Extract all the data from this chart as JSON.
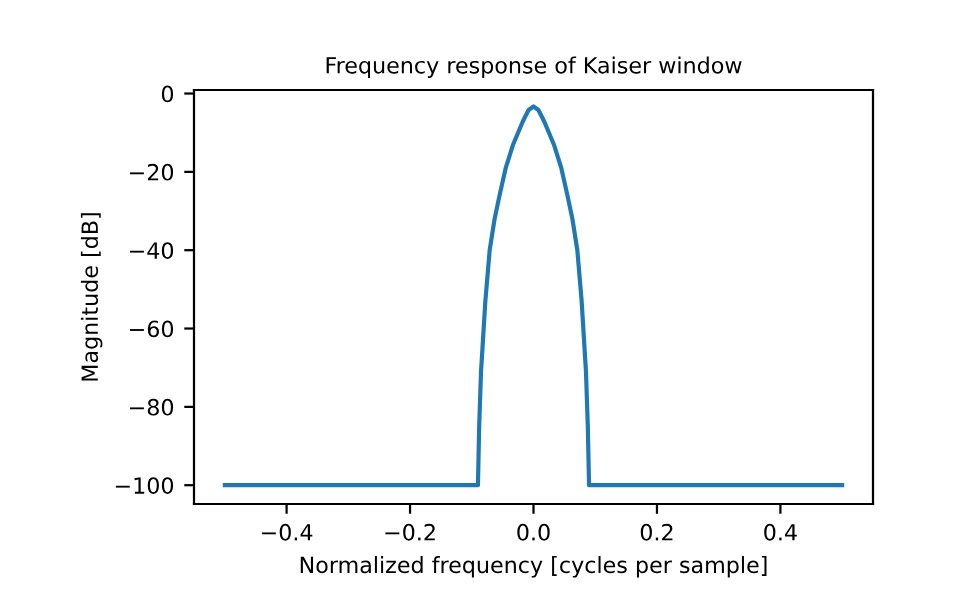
{
  "chart_data": {
    "type": "line",
    "title": "Frequency response of Kaiser window",
    "xlabel": "Normalized frequency [cycles per sample]",
    "ylabel": "Magnitude [dB]",
    "x": [
      -0.5,
      -0.09,
      -0.088,
      -0.085,
      -0.078,
      -0.071,
      -0.063,
      -0.055,
      -0.045,
      -0.033,
      -0.025,
      -0.017,
      -0.008,
      0,
      0.008,
      0.017,
      0.025,
      0.033,
      0.045,
      0.055,
      0.063,
      0.071,
      0.078,
      0.085,
      0.088,
      0.09,
      0.5
    ],
    "values": [
      -100,
      -100,
      -85,
      -71,
      -53,
      -40,
      -32,
      -26,
      -19,
      -13,
      -10,
      -7,
      -4.2,
      -3.3,
      -4.2,
      -7,
      -10,
      -13,
      -19,
      -26,
      -32,
      -40,
      -53,
      -71,
      -85,
      -100,
      -100
    ],
    "color": "#1f77b4",
    "xlim": [
      -0.55,
      0.55
    ],
    "ylim": [
      -104.8,
      0.9
    ],
    "xticks": [
      {
        "value": -0.4,
        "label": "−0.4"
      },
      {
        "value": -0.2,
        "label": "−0.2"
      },
      {
        "value": 0,
        "label": "0.0"
      },
      {
        "value": 0.2,
        "label": "0.2"
      },
      {
        "value": 0.4,
        "label": "0.4"
      }
    ],
    "yticks": [
      -100,
      -80,
      -60,
      -40,
      -20,
      0
    ],
    "grid": false
  }
}
